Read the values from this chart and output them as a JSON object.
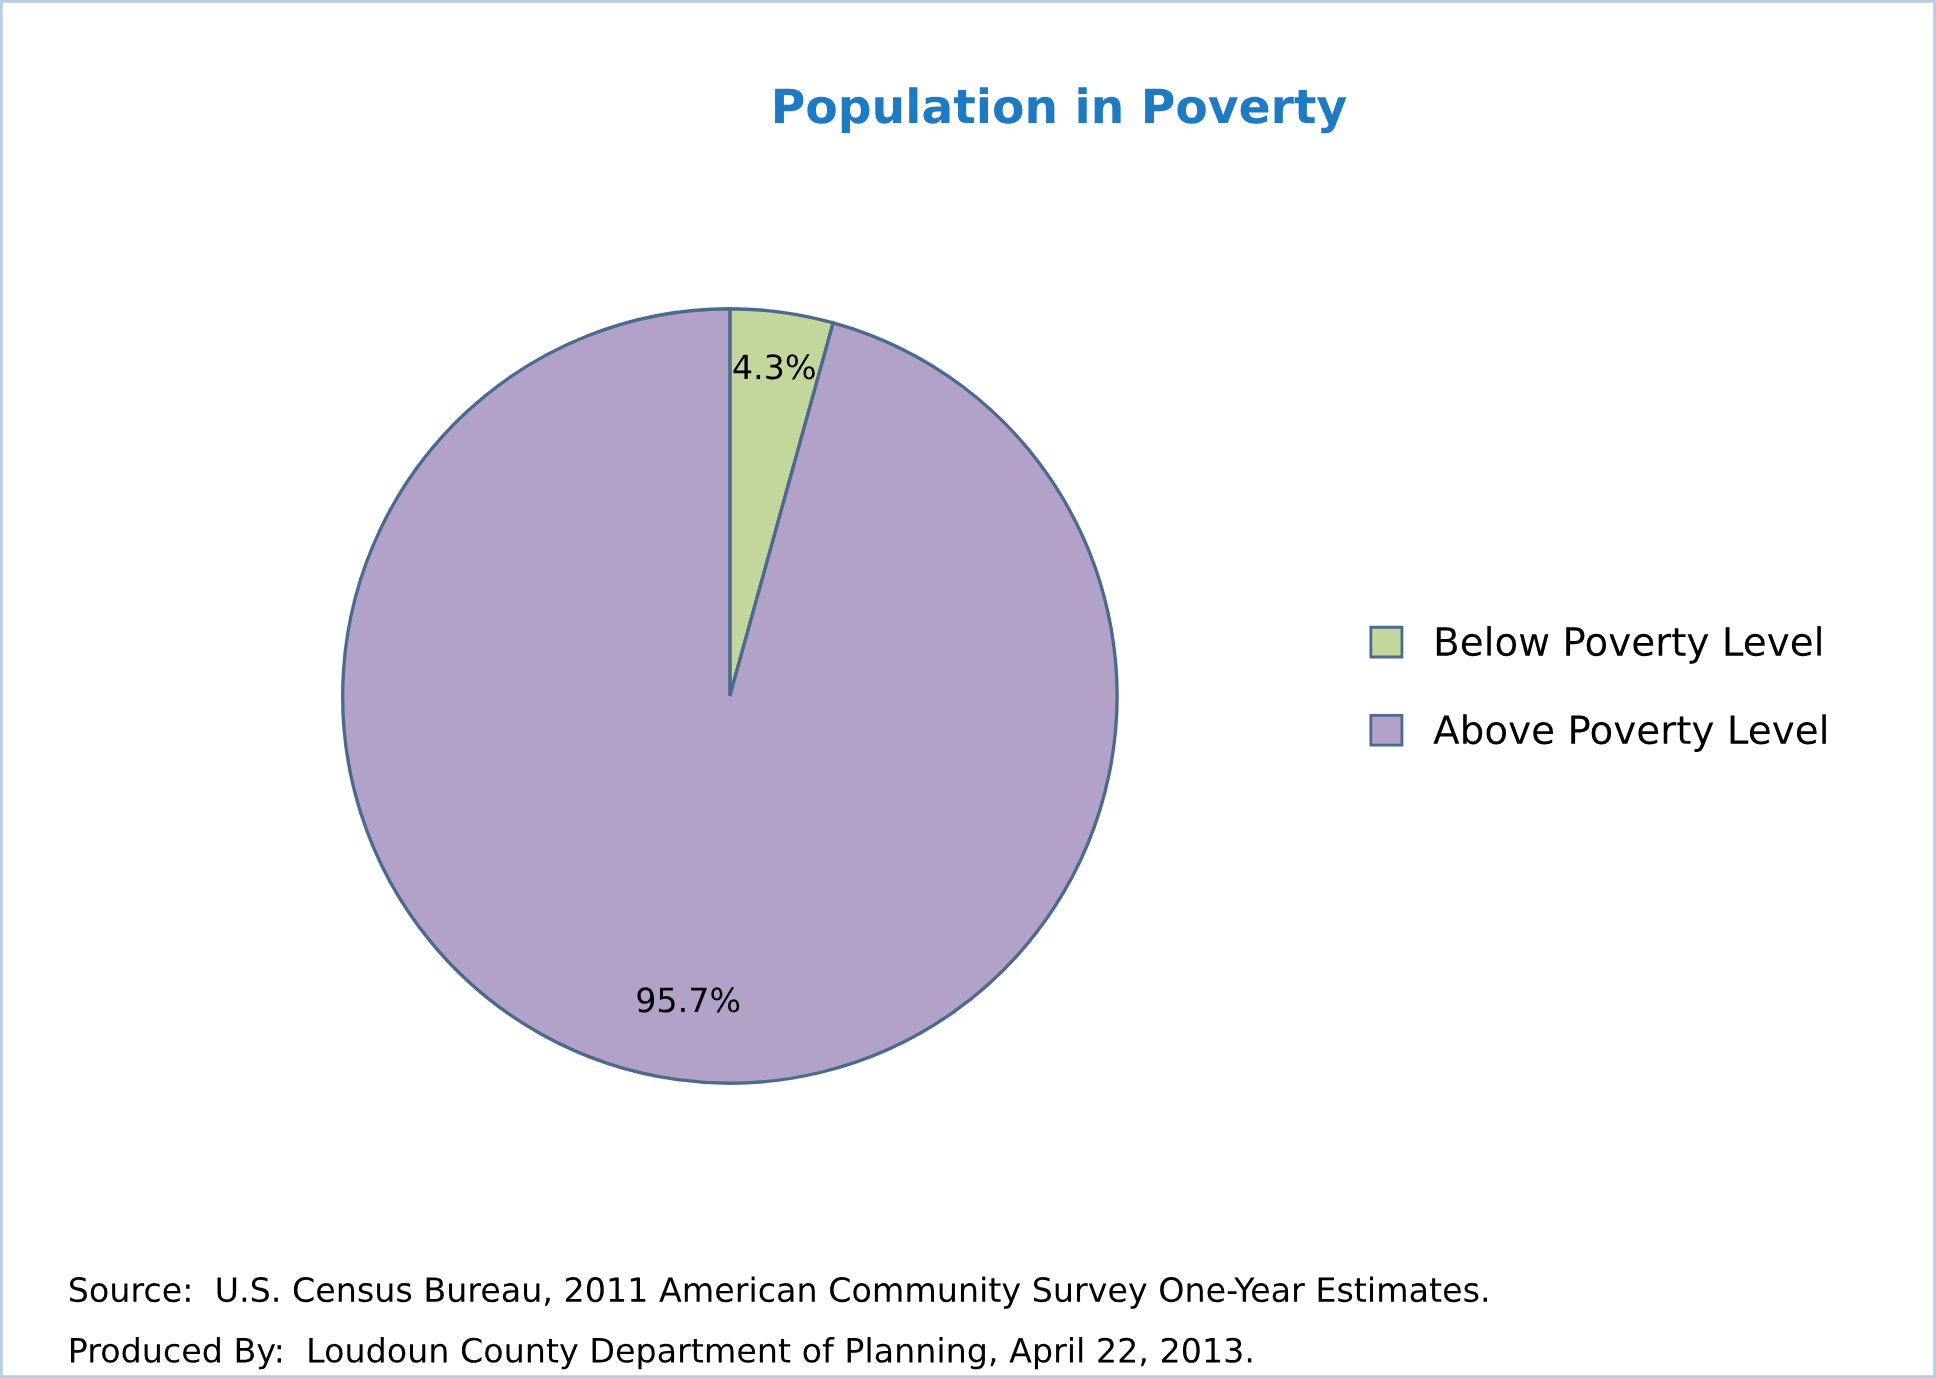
{
  "chart_data": {
    "type": "pie",
    "title": "Population in Poverty",
    "categories": [
      "Below Poverty Level",
      "Above Poverty Level"
    ],
    "values": [
      4.3,
      95.7
    ],
    "colors": [
      "#c3d69b",
      "#b3a2c7"
    ],
    "value_labels": [
      "4.3%",
      "95.7%"
    ],
    "legend": "right",
    "annotations": [
      "Source:  U.S. Census Bureau, 2011 American Community Survey One-Year Estimates.",
      "Produced By:  Loudoun County Department of Planning, April 22, 2013."
    ]
  }
}
